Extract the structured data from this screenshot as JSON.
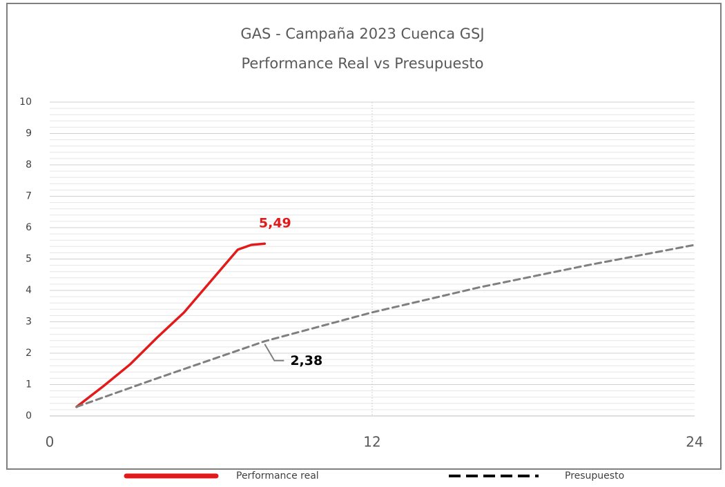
{
  "chart_data": {
    "type": "line",
    "title": [
      "GAS - Campaña 2023 Cuenca GSJ",
      "Performance Real vs Presupuesto"
    ],
    "xlim": [
      0,
      24
    ],
    "xticks": [
      0,
      12,
      24
    ],
    "ylim": [
      0,
      10
    ],
    "yticks": [
      0,
      1,
      2,
      3,
      4,
      5,
      6,
      7,
      8,
      9,
      10
    ],
    "grid": true,
    "minor_grid": 0.2,
    "legend": "bottom",
    "series": [
      {
        "name": "Performance real",
        "color": "#e31a1c",
        "x": [
          1,
          2,
          3,
          4,
          5,
          6,
          7,
          7.5,
          8
        ],
        "values": [
          0.29,
          0.95,
          1.65,
          2.5,
          3.3,
          4.3,
          5.3,
          5.45,
          5.49
        ],
        "value_labels": [
          null,
          null,
          null,
          null,
          null,
          null,
          null,
          null,
          "5,49"
        ]
      },
      {
        "name": "Presupuesto",
        "color": "#7f7f7f",
        "dashed": true,
        "x": [
          1,
          4,
          8,
          12,
          16,
          20,
          24
        ],
        "values": [
          0.29,
          1.2,
          2.38,
          3.3,
          4.1,
          4.8,
          5.45
        ],
        "value_labels": [
          null,
          null,
          "2,38",
          null,
          null,
          null,
          null
        ]
      }
    ]
  }
}
